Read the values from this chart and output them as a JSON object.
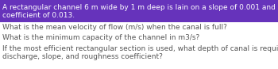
{
  "highlight_line1": "A rectangular channel 6 m wide by 1 m deep is lain on a slope of 0.001 and has a roughness",
  "highlight_line2": "coefficient of 0.013.",
  "highlight_bg": "#6633bb",
  "highlight_text_color": "#ffffff",
  "q1": "What is the mean velocity of flow (m/s) when the canal is full?",
  "q2": "What is the minimum capacity of the channel in m3/s?",
  "q3_line1": "If the most efficient rectangular section is used, what depth of canal is required for the same",
  "q3_line2": "discharge, slope, and roughness coefficient?",
  "body_text_color": "#555555",
  "bg_color": "#ffffff",
  "fontsize": 6.5,
  "fig_width": 3.5,
  "fig_height": 0.87,
  "dpi": 100
}
